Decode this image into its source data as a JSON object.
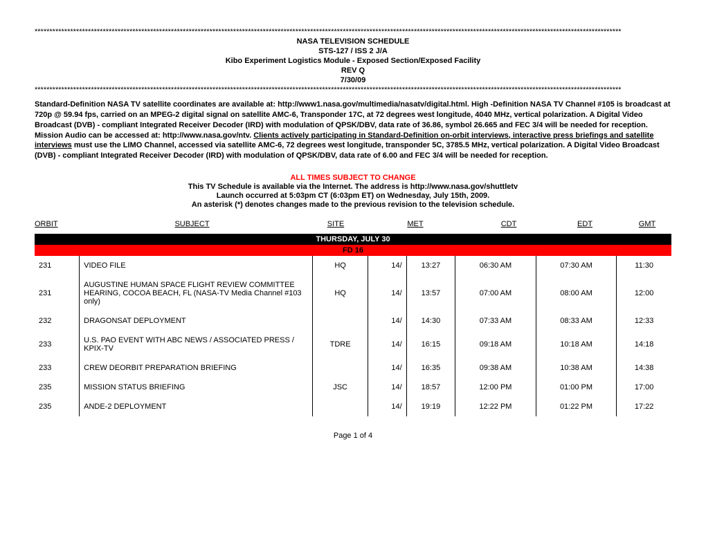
{
  "header": {
    "star_line": "******************************************************************************************************************************************************************************************************",
    "title": "NASA TELEVISION SCHEDULE",
    "mission": "STS-127 / ISS 2 J/A",
    "subtitle": "Kibo Experiment Logistics Module - Exposed Section/Exposed Facility",
    "rev": "REV Q",
    "date": "7/30/09"
  },
  "info": {
    "p1_a": "Standard-Definition NASA TV satellite coordinates are available at: http://www1.nasa.gov/multimedia/nasatv/digital.html.  ",
    "p1_b": "High -Definition NASA TV Channel #105",
    "p1_c": " is broadcast at 720p @ 59.94 fps, carried on an MPEG-2 digital signal on satellite AMC-6, Transponder 17C, at 72 degrees west longitude, 4040 MHz, vertical polarization.  A Digital Video Broadcast (DVB) - compliant Integrated Receiver Decoder (IRD) with modulation of QPSK/DBV, data rate of 36.86, symbol 26.665 and FEC 3/4  will be needed for reception.  Mission Audio can be accessed at: http://www.nasa.gov/ntv. ",
    "p1_d": "Clients actively participating in Standard-Definition on-orbit interviews, interactive press briefings and satellite interviews",
    "p1_e": " must use the LIMO Channel, accessed via satellite AMC-6, 72 degrees west longitude, transponder 5C, 3785.5 MHz, vertical polarization. A Digital Video Broadcast (DVB) - compliant Integrated Receiver Decoder (IRD) with modulation of QPSK/DBV, data rate of 6.00 and FEC 3/4  will be needed for reception."
  },
  "notice": {
    "change": "ALL TIMES SUBJECT TO CHANGE",
    "line1": "This TV Schedule is available via the Internet. The address is http://www.nasa.gov/shuttletv",
    "line2": "Launch occurred at 5:03pm CT (6:03pm ET) on Wednesday, July 15th, 2009.",
    "line3": "An asterisk (*) denotes changes made to the previous revision to the television schedule."
  },
  "columns": {
    "orbit": "ORBIT",
    "subject": "SUBJECT",
    "site": "SITE",
    "met": "MET",
    "cdt": "CDT",
    "edt": "EDT",
    "gmt": "GMT"
  },
  "day_header": "THURSDAY, JULY 30",
  "fd_header": "FD 16",
  "rows": [
    {
      "orbit": "231",
      "subject": "VIDEO FILE",
      "site": "HQ",
      "met1": "14/",
      "met2": "13:27",
      "cdt": "06:30 AM",
      "edt": "07:30 AM",
      "gmt": "11:30"
    },
    {
      "orbit": "231",
      "subject": "AUGUSTINE HUMAN SPACE FLIGHT REVIEW COMMITTEE HEARING, COCOA BEACH, FL (NASA-TV Media Channel #103 only)",
      "site": "HQ",
      "met1": "14/",
      "met2": "13:57",
      "cdt": "07:00 AM",
      "edt": "08:00 AM",
      "gmt": "12:00"
    },
    {
      "orbit": "232",
      "subject": "DRAGONSAT DEPLOYMENT",
      "site": "",
      "met1": "14/",
      "met2": "14:30",
      "cdt": "07:33 AM",
      "edt": "08:33 AM",
      "gmt": "12:33"
    },
    {
      "orbit": "233",
      "subject": "U.S. PAO EVENT WITH ABC NEWS / ASSOCIATED PRESS / KPIX-TV",
      "site": "TDRE",
      "met1": "14/",
      "met2": "16:15",
      "cdt": "09:18 AM",
      "edt": "10:18 AM",
      "gmt": "14:18"
    },
    {
      "orbit": "233",
      "subject": "CREW DEORBIT PREPARATION BRIEFING",
      "site": "",
      "met1": "14/",
      "met2": "16:35",
      "cdt": "09:38 AM",
      "edt": "10:38 AM",
      "gmt": "14:38"
    },
    {
      "orbit": "235",
      "subject": "MISSION STATUS BRIEFING",
      "site": "JSC",
      "met1": "14/",
      "met2": "18:57",
      "cdt": "12:00 PM",
      "edt": "01:00 PM",
      "gmt": "17:00"
    },
    {
      "orbit": "235",
      "subject": "ANDE-2 DEPLOYMENT",
      "site": "",
      "met1": "14/",
      "met2": "19:19",
      "cdt": "12:22 PM",
      "edt": "01:22 PM",
      "gmt": "17:22"
    }
  ],
  "footer": "Page 1 of 4"
}
